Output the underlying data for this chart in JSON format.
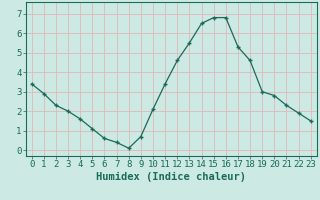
{
  "x": [
    0,
    1,
    2,
    3,
    4,
    5,
    6,
    7,
    8,
    9,
    10,
    11,
    12,
    13,
    14,
    15,
    16,
    17,
    18,
    19,
    20,
    21,
    22,
    23
  ],
  "y": [
    3.4,
    2.9,
    2.3,
    2.0,
    1.6,
    1.1,
    0.6,
    0.4,
    0.1,
    0.7,
    2.1,
    3.4,
    4.6,
    5.5,
    6.5,
    6.8,
    6.8,
    5.3,
    4.6,
    3.0,
    2.8,
    2.3,
    1.9,
    1.5
  ],
  "line_color": "#1a6b5a",
  "marker": "+",
  "background_color": "#cce9e4",
  "grid_color": "#e0b8b8",
  "xlabel": "Humidex (Indice chaleur)",
  "xlabel_fontsize": 7.5,
  "tick_fontsize": 6.5,
  "xlim": [
    -0.5,
    23.5
  ],
  "ylim": [
    -0.3,
    7.6
  ],
  "yticks": [
    0,
    1,
    2,
    3,
    4,
    5,
    6,
    7
  ],
  "xticks": [
    0,
    1,
    2,
    3,
    4,
    5,
    6,
    7,
    8,
    9,
    10,
    11,
    12,
    13,
    14,
    15,
    16,
    17,
    18,
    19,
    20,
    21,
    22,
    23
  ]
}
